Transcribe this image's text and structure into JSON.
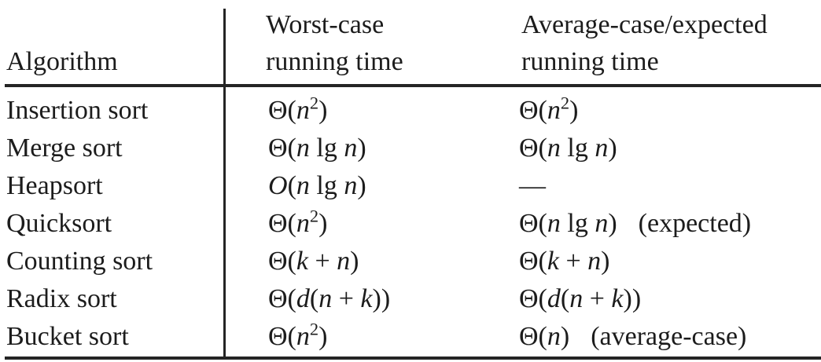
{
  "colors": {
    "background": "#ffffff",
    "text": "#1c1c1c",
    "rule": "#242424"
  },
  "table": {
    "header": {
      "col_algorithm": "Algorithm",
      "col_worst_line1": "Worst-case",
      "col_worst_line2": "running time",
      "col_average_line1": "Average-case/expected",
      "col_average_line2": "running time"
    },
    "rows": [
      {
        "algorithm": "Insertion sort",
        "worst": [
          {
            "t": "Θ("
          },
          {
            "t": "n",
            "s": "i"
          },
          {
            "t": "2",
            "s": "sup"
          },
          {
            "t": ")"
          }
        ],
        "average": [
          {
            "t": "Θ("
          },
          {
            "t": "n",
            "s": "i"
          },
          {
            "t": "2",
            "s": "sup"
          },
          {
            "t": ")"
          }
        ],
        "average_note": ""
      },
      {
        "algorithm": "Merge sort",
        "worst": [
          {
            "t": "Θ("
          },
          {
            "t": "n",
            "s": "i"
          },
          {
            "t": " lg "
          },
          {
            "t": "n",
            "s": "i"
          },
          {
            "t": ")"
          }
        ],
        "average": [
          {
            "t": "Θ("
          },
          {
            "t": "n",
            "s": "i"
          },
          {
            "t": " lg "
          },
          {
            "t": "n",
            "s": "i"
          },
          {
            "t": ")"
          }
        ],
        "average_note": ""
      },
      {
        "algorithm": "Heapsort",
        "worst": [
          {
            "t": "O",
            "s": "i"
          },
          {
            "t": "("
          },
          {
            "t": "n",
            "s": "i"
          },
          {
            "t": " lg "
          },
          {
            "t": "n",
            "s": "i"
          },
          {
            "t": ")"
          }
        ],
        "average": [
          {
            "t": "—"
          }
        ],
        "average_note": ""
      },
      {
        "algorithm": "Quicksort",
        "worst": [
          {
            "t": "Θ("
          },
          {
            "t": "n",
            "s": "i"
          },
          {
            "t": "2",
            "s": "sup"
          },
          {
            "t": ")"
          }
        ],
        "average": [
          {
            "t": "Θ("
          },
          {
            "t": "n",
            "s": "i"
          },
          {
            "t": " lg "
          },
          {
            "t": "n",
            "s": "i"
          },
          {
            "t": ")"
          }
        ],
        "average_note": "(expected)"
      },
      {
        "algorithm": "Counting sort",
        "worst": [
          {
            "t": "Θ("
          },
          {
            "t": "k",
            "s": "i"
          },
          {
            "t": " + "
          },
          {
            "t": "n",
            "s": "i"
          },
          {
            "t": ")"
          }
        ],
        "average": [
          {
            "t": "Θ("
          },
          {
            "t": "k",
            "s": "i"
          },
          {
            "t": " + "
          },
          {
            "t": "n",
            "s": "i"
          },
          {
            "t": ")"
          }
        ],
        "average_note": ""
      },
      {
        "algorithm": "Radix sort",
        "worst": [
          {
            "t": "Θ("
          },
          {
            "t": "d",
            "s": "i"
          },
          {
            "t": "("
          },
          {
            "t": "n",
            "s": "i"
          },
          {
            "t": " + "
          },
          {
            "t": "k",
            "s": "i"
          },
          {
            "t": "))"
          }
        ],
        "average": [
          {
            "t": "Θ("
          },
          {
            "t": "d",
            "s": "i"
          },
          {
            "t": "("
          },
          {
            "t": "n",
            "s": "i"
          },
          {
            "t": " + "
          },
          {
            "t": "k",
            "s": "i"
          },
          {
            "t": "))"
          }
        ],
        "average_note": ""
      },
      {
        "algorithm": "Bucket sort",
        "worst": [
          {
            "t": "Θ("
          },
          {
            "t": "n",
            "s": "i"
          },
          {
            "t": "2",
            "s": "sup"
          },
          {
            "t": ")"
          }
        ],
        "average": [
          {
            "t": "Θ("
          },
          {
            "t": "n",
            "s": "i"
          },
          {
            "t": ")"
          }
        ],
        "average_note": "(average-case)"
      }
    ]
  }
}
